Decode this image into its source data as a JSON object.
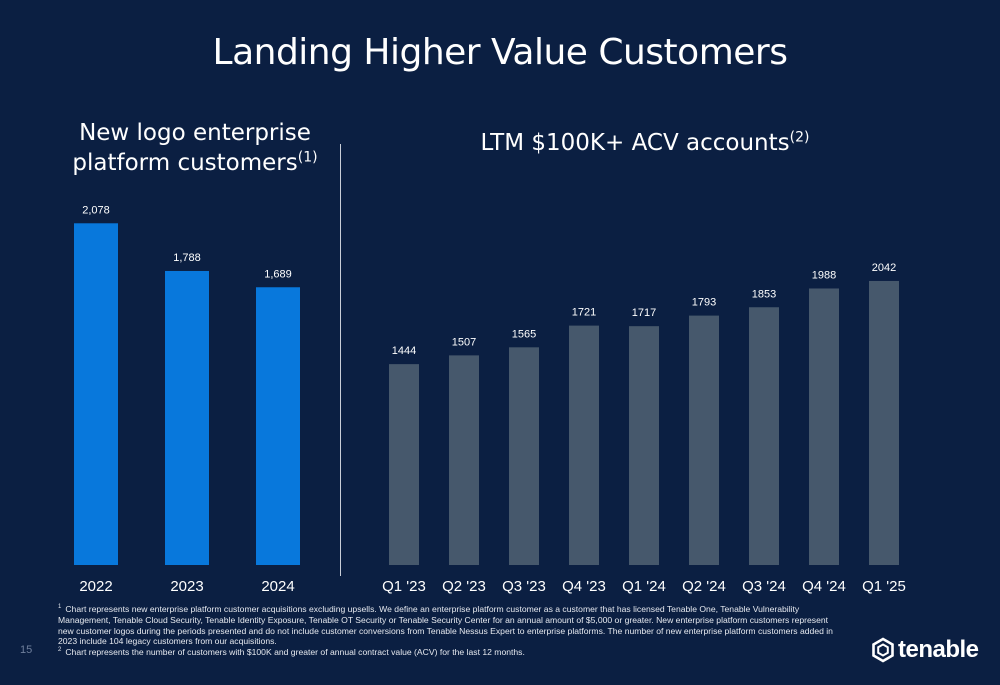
{
  "title": "Landing Higher Value Customers",
  "left_subtitle": {
    "line1": "New logo enterprise",
    "line2": "platform customers",
    "note": "(1)"
  },
  "right_subtitle": {
    "text": "LTM $100K+ ACV accounts",
    "note": "(2)"
  },
  "colors": {
    "background": "#0b1f42",
    "left_bars": "#0878dc",
    "right_bars": "#46586c",
    "text": "#ffffff"
  },
  "chart_data": [
    {
      "type": "bar",
      "categories": [
        "2022",
        "2023",
        "2024"
      ],
      "values": [
        2078,
        1788,
        1689
      ],
      "data_labels": [
        "2,078",
        "1,788",
        "1,689"
      ],
      "title": "New logo enterprise platform customers(1)",
      "ylim": [
        0,
        2250
      ]
    },
    {
      "type": "bar",
      "categories": [
        "Q1 '23",
        "Q2 '23",
        "Q3 '23",
        "Q4 '23",
        "Q1 '24",
        "Q2 '24",
        "Q3 '24",
        "Q4 '24",
        "Q1 '25"
      ],
      "values": [
        1444,
        1507,
        1565,
        1721,
        1717,
        1793,
        1853,
        1988,
        2042
      ],
      "data_labels": [
        "1444",
        "1507",
        "1565",
        "1721",
        "1717",
        "1793",
        "1853",
        "1988",
        "2042"
      ],
      "title": "LTM $100K+ ACV accounts(2)",
      "ylim": [
        0,
        2660
      ]
    }
  ],
  "footnotes": {
    "n1_mark": "1",
    "n1": "Chart represents new enterprise platform customer acquisitions excluding upsells. We define an enterprise platform customer as a customer that has licensed Tenable One, Tenable Vulnerability Management, Tenable Cloud Security, Tenable Identity Exposure, Tenable OT Security or Tenable Security Center for an annual amount of $5,000 or greater. New enterprise platform customers represent new customer logos during the periods presented and do not include customer conversions from Tenable Nessus Expert to enterprise platforms. The number of new enterprise platform customers added in 2023 include 104 legacy customers from our acquisitions.",
    "n2_mark": "2",
    "n2": "Chart represents the number of customers with $100K and greater of annual contract value (ACV) for the last 12 months."
  },
  "page_number": "15",
  "logo_text": "tenable"
}
